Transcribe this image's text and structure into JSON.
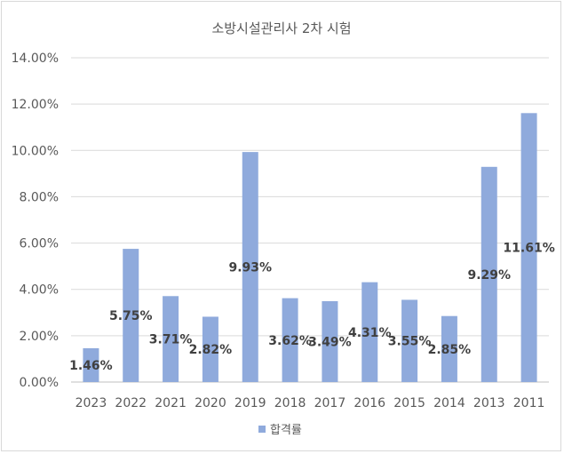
{
  "chart_data": {
    "type": "bar",
    "title": "소방시설관리사 2차 시험",
    "categories": [
      "2023",
      "2022",
      "2021",
      "2020",
      "2019",
      "2018",
      "2017",
      "2016",
      "2015",
      "2014",
      "2013",
      "2011"
    ],
    "series": [
      {
        "name": "합격률",
        "values": [
          1.46,
          5.75,
          3.71,
          2.82,
          9.93,
          3.62,
          3.49,
          4.31,
          3.55,
          2.85,
          9.29,
          11.61
        ],
        "labels": [
          "1.46%",
          "5.75%",
          "3.71%",
          "2.82%",
          "9.93%",
          "3.62%",
          "3.49%",
          "4.31%",
          "3.55%",
          "2.85%",
          "9.29%",
          "11.61%"
        ],
        "color": "#8faadc"
      }
    ],
    "ylim": [
      0,
      14
    ],
    "yticks": [
      "0.00%",
      "2.00%",
      "4.00%",
      "6.00%",
      "8.00%",
      "10.00%",
      "12.00%",
      "14.00%"
    ],
    "grid": true,
    "legend": "bottom"
  }
}
